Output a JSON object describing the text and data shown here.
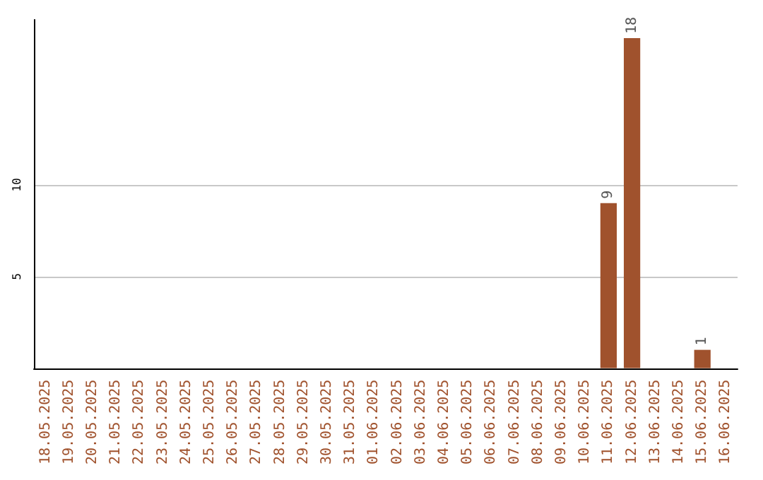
{
  "chart_data": {
    "type": "bar",
    "categories": [
      "18.05.2025",
      "19.05.2025",
      "20.05.2025",
      "21.05.2025",
      "22.05.2025",
      "23.05.2025",
      "24.05.2025",
      "25.05.2025",
      "26.05.2025",
      "27.05.2025",
      "28.05.2025",
      "29.05.2025",
      "30.05.2025",
      "31.05.2025",
      "01.06.2025",
      "02.06.2025",
      "03.06.2025",
      "04.06.2025",
      "05.06.2025",
      "06.06.2025",
      "07.06.2025",
      "08.06.2025",
      "09.06.2025",
      "10.06.2025",
      "11.06.2025",
      "12.06.2025",
      "13.06.2025",
      "14.06.2025",
      "15.06.2025",
      "16.06.2025"
    ],
    "values": [
      0,
      0,
      0,
      0,
      0,
      0,
      0,
      0,
      0,
      0,
      0,
      0,
      0,
      0,
      0,
      0,
      0,
      0,
      0,
      0,
      0,
      0,
      0,
      0,
      9,
      18,
      0,
      0,
      1,
      0
    ],
    "value_labels": [
      null,
      null,
      null,
      null,
      null,
      null,
      null,
      null,
      null,
      null,
      null,
      null,
      null,
      null,
      null,
      null,
      null,
      null,
      null,
      null,
      null,
      null,
      null,
      null,
      "9",
      "18",
      null,
      null,
      "1",
      null
    ],
    "color": "#a0522d",
    "ylim": [
      0,
      19
    ],
    "yticks": [
      5,
      10
    ],
    "grid": "y"
  }
}
